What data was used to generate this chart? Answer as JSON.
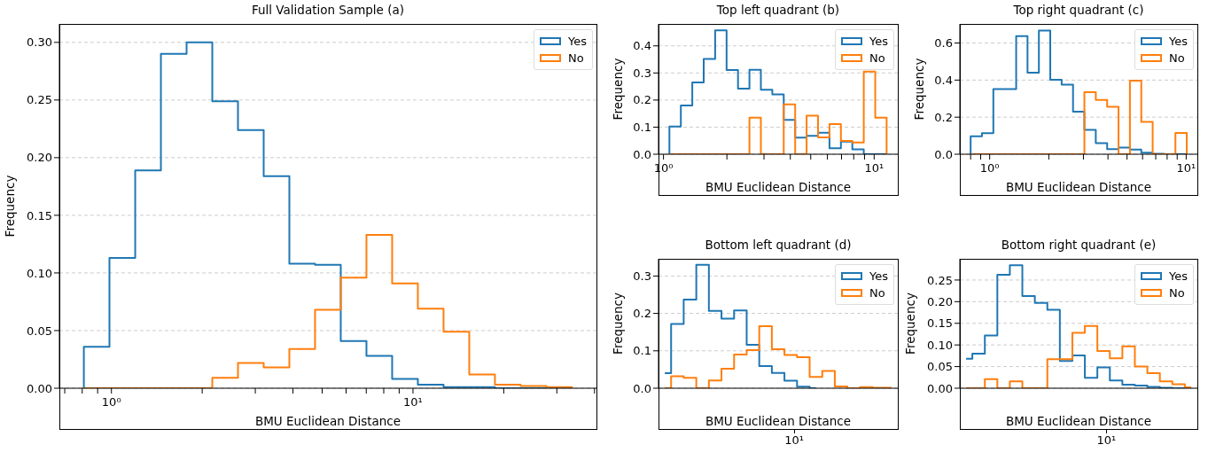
{
  "chart_data": [
    {
      "type": "histogram",
      "title": "Full Validation Sample (a)",
      "xlabel": "BMU Euclidean Distance",
      "ylabel": "Frequency",
      "log": "x",
      "grid": "y",
      "legend": "top right",
      "bins": [
        0.81,
        0.985,
        1.199,
        1.459,
        1.775,
        2.16,
        2.628,
        3.198,
        3.891,
        4.734,
        5.761,
        7.01,
        8.53,
        10.38,
        12.63,
        15.37,
        18.7,
        22.75,
        27.69,
        33.69
      ],
      "series": [
        {
          "name": "Yes",
          "color": "#1f77b4",
          "values": [
            0.036,
            0.113,
            0.189,
            0.29,
            0.3,
            0.249,
            0.224,
            0.184,
            0.108,
            0.107,
            0.041,
            0.028,
            0.008,
            0.003,
            0.001,
            0.001,
            0,
            0,
            0
          ]
        },
        {
          "name": "No",
          "color": "#ff7f0e",
          "values": [
            0,
            0,
            0,
            0,
            0,
            0.009,
            0.022,
            0.018,
            0.034,
            0.068,
            0.096,
            0.133,
            0.091,
            0.069,
            0.049,
            0.012,
            0.003,
            0.002,
            0.001
          ]
        }
      ],
      "xlim": [
        0.672,
        40.6
      ],
      "ylim": [
        0,
        0.316
      ],
      "xticks": [
        {
          "value": 0.7,
          "label": null
        },
        {
          "value": 0.8,
          "label": null
        },
        {
          "value": 0.9,
          "label": null
        },
        {
          "value": 1,
          "label": "10⁰"
        },
        {
          "value": 2,
          "label": null
        },
        {
          "value": 3,
          "label": null
        },
        {
          "value": 4,
          "label": null
        },
        {
          "value": 5,
          "label": null
        },
        {
          "value": 6,
          "label": null
        },
        {
          "value": 7,
          "label": null
        },
        {
          "value": 8,
          "label": null
        },
        {
          "value": 9,
          "label": null
        },
        {
          "value": 10,
          "label": "10¹"
        },
        {
          "value": 20,
          "label": null
        },
        {
          "value": 30,
          "label": null
        },
        {
          "value": 40,
          "label": null
        }
      ],
      "yticks": [
        {
          "value": 0,
          "label": "0.00"
        },
        {
          "value": 0.05,
          "label": "0.05"
        },
        {
          "value": 0.1,
          "label": "0.10"
        },
        {
          "value": 0.15,
          "label": "0.15"
        },
        {
          "value": 0.2,
          "label": "0.20"
        },
        {
          "value": 0.25,
          "label": "0.25"
        },
        {
          "value": 0.3,
          "label": "0.30"
        }
      ]
    },
    {
      "type": "histogram",
      "title": "Top left quadrant (b)",
      "xlabel": "BMU Euclidean Distance",
      "ylabel": "Frequency",
      "log": "x",
      "grid": "y",
      "legend": "top right",
      "bins": [
        1.067,
        1.209,
        1.37,
        1.552,
        1.759,
        1.993,
        2.258,
        2.559,
        2.899,
        3.285,
        3.722,
        4.218,
        4.779,
        5.415,
        6.136,
        6.953,
        7.878,
        8.927,
        10.12,
        11.46
      ],
      "series": [
        {
          "name": "Yes",
          "color": "#1f77b4",
          "values": [
            0.102,
            0.18,
            0.265,
            0.352,
            0.457,
            0.311,
            0.242,
            0.312,
            0.238,
            0.221,
            0.127,
            0.061,
            0.068,
            0.079,
            0.022,
            0.047,
            0.018,
            0,
            0
          ]
        },
        {
          "name": "No",
          "color": "#ff7f0e",
          "values": [
            0,
            0,
            0,
            0,
            0,
            0,
            0,
            0.135,
            0,
            0,
            0.184,
            0,
            0.142,
            0.062,
            0.111,
            0.049,
            0.043,
            0.305,
            0.135
          ]
        }
      ],
      "xlim": [
        0.947,
        12.95
      ],
      "ylim": [
        0,
        0.481
      ],
      "xticks": [
        {
          "value": 1,
          "label": "10⁰"
        },
        {
          "value": 2,
          "label": null
        },
        {
          "value": 3,
          "label": null
        },
        {
          "value": 4,
          "label": null
        },
        {
          "value": 5,
          "label": null
        },
        {
          "value": 6,
          "label": null
        },
        {
          "value": 7,
          "label": null
        },
        {
          "value": 8,
          "label": null
        },
        {
          "value": 9,
          "label": null
        },
        {
          "value": 10,
          "label": "10¹"
        }
      ],
      "yticks": [
        {
          "value": 0,
          "label": "0.0"
        },
        {
          "value": 0.1,
          "label": "0.1"
        },
        {
          "value": 0.2,
          "label": "0.2"
        },
        {
          "value": 0.3,
          "label": "0.3"
        },
        {
          "value": 0.4,
          "label": "0.4"
        }
      ]
    },
    {
      "type": "histogram",
      "title": "Top right quadrant (c)",
      "xlabel": "BMU Euclidean Distance",
      "ylabel": "Frequency",
      "log": "x",
      "grid": "y",
      "legend": "top right",
      "bins": [
        0.8,
        0.914,
        1.044,
        1.193,
        1.364,
        1.558,
        1.78,
        2.034,
        2.324,
        2.656,
        3.034,
        3.467,
        3.961,
        4.526,
        5.172,
        5.909,
        6.752,
        7.715,
        8.815,
        10.07
      ],
      "series": [
        {
          "name": "Yes",
          "color": "#1f77b4",
          "values": [
            0.097,
            0.113,
            0.352,
            0.352,
            0.637,
            0.44,
            0.667,
            0.402,
            0.376,
            0.23,
            0.131,
            0.06,
            0.028,
            0.036,
            0.025,
            0.008,
            0.002,
            0,
            0
          ]
        },
        {
          "name": "No",
          "color": "#ff7f0e",
          "values": [
            0,
            0,
            0,
            0,
            0,
            0,
            0,
            0,
            0,
            0,
            0.335,
            0.293,
            0.256,
            0,
            0.397,
            0.174,
            0,
            0,
            0.115
          ]
        }
      ],
      "xlim": [
        0.705,
        11.4
      ],
      "ylim": [
        0,
        0.703
      ],
      "xticks": [
        {
          "value": 0.8,
          "label": null
        },
        {
          "value": 0.9,
          "label": null
        },
        {
          "value": 1,
          "label": "10⁰"
        },
        {
          "value": 2,
          "label": null
        },
        {
          "value": 3,
          "label": null
        },
        {
          "value": 4,
          "label": null
        },
        {
          "value": 5,
          "label": null
        },
        {
          "value": 6,
          "label": null
        },
        {
          "value": 7,
          "label": null
        },
        {
          "value": 8,
          "label": null
        },
        {
          "value": 9,
          "label": null
        },
        {
          "value": 10,
          "label": "10¹"
        }
      ],
      "yticks": [
        {
          "value": 0,
          "label": "0.0"
        },
        {
          "value": 0.2,
          "label": "0.2"
        },
        {
          "value": 0.4,
          "label": "0.4"
        },
        {
          "value": 0.6,
          "label": "0.6"
        }
      ]
    },
    {
      "type": "step",
      "title": "Bottom left quadrant (d)",
      "xlabel": "BMU Euclidean Distance",
      "ylabel": "Frequency",
      "grid": "y",
      "legend": "top right",
      "categories": [
        null,
        null,
        null,
        null,
        null,
        null,
        null,
        null,
        null,
        null,
        null,
        null,
        null,
        null,
        null,
        null,
        null,
        null,
        null
      ],
      "annotations": [
        "10¹"
      ],
      "series": [
        {
          "name": "Yes",
          "color": "#1f77b4",
          "values": [
            0.04,
            0.172,
            0.237,
            0.33,
            0.207,
            0.186,
            0.208,
            0.116,
            0.059,
            0.041,
            0.02,
            0.004,
            0,
            null,
            null,
            null,
            null,
            null,
            null
          ]
        },
        {
          "name": "No",
          "color": "#ff7f0e",
          "values": [
            0,
            0.032,
            0.028,
            0,
            0.021,
            0.052,
            0.09,
            0.102,
            0.166,
            0.104,
            0.089,
            0.083,
            0.03,
            0.046,
            0.005,
            0,
            0.003,
            0.001,
            0.001
          ]
        }
      ],
      "ylim": [
        0,
        0.346
      ],
      "yticks": [
        {
          "value": 0,
          "label": "0.0"
        },
        {
          "value": 0.1,
          "label": "0.1"
        },
        {
          "value": 0.2,
          "label": "0.2"
        },
        {
          "value": 0.3,
          "label": "0.3"
        }
      ]
    },
    {
      "type": "step",
      "title": "Bottom right quadrant (e)",
      "xlabel": "BMU Euclidean Distance",
      "ylabel": "Frequency",
      "grid": "y",
      "legend": "top right",
      "categories": [
        null,
        null,
        null,
        null,
        null,
        null,
        null,
        null,
        null,
        null,
        null,
        null,
        null,
        null,
        null,
        null,
        null,
        null,
        null
      ],
      "annotations": [
        "10¹"
      ],
      "series": [
        {
          "name": "Yes",
          "color": "#1f77b4",
          "values": [
            0.068,
            0.08,
            0.122,
            0.262,
            0.284,
            0.213,
            0.197,
            0.181,
            0.063,
            0.076,
            0.024,
            0.048,
            0.018,
            0.008,
            0.006,
            0.003,
            0.001,
            0,
            0
          ]
        },
        {
          "name": "No",
          "color": "#ff7f0e",
          "values": [
            0,
            0,
            0.021,
            0,
            0.016,
            0,
            0,
            0.067,
            0.067,
            0.128,
            0.144,
            0.086,
            0.069,
            0.097,
            0.05,
            0.035,
            0.016,
            0.009,
            0.002
          ]
        }
      ],
      "ylim": [
        0,
        0.299
      ],
      "yticks": [
        {
          "value": 0,
          "label": "0.00"
        },
        {
          "value": 0.05,
          "label": "0.05"
        },
        {
          "value": 0.1,
          "label": "0.10"
        },
        {
          "value": 0.15,
          "label": "0.15"
        },
        {
          "value": 0.2,
          "label": "0.20"
        },
        {
          "value": 0.25,
          "label": "0.25"
        }
      ]
    }
  ]
}
